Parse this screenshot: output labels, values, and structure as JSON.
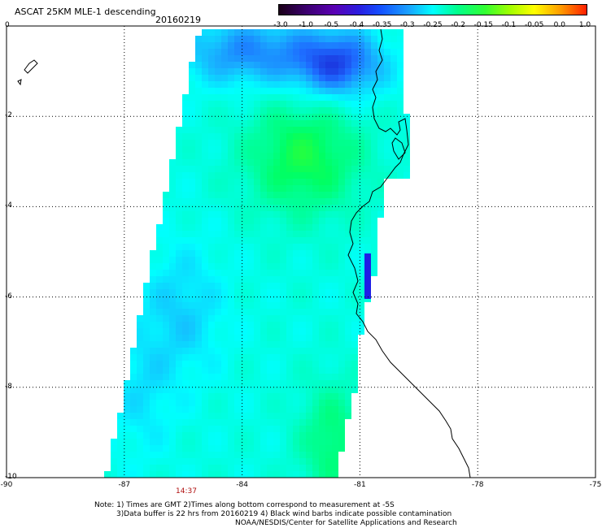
{
  "header": {
    "title": "ASCAT 25KM MLE-1 descending",
    "date": "20160219"
  },
  "colorbar": {
    "labels": [
      "-3.0",
      "-1.0",
      "-0.5",
      "-0.4",
      "-0.35",
      "-0.3",
      "-0.25",
      "-0.2",
      "-0.15",
      "-0.1",
      "-0.05",
      "0.0",
      "1.0"
    ],
    "colors": [
      "#1a0018",
      "#3c0070",
      "#5a00b4",
      "#2a1ee0",
      "#1450ff",
      "#1aa0ff",
      "#00ffff",
      "#00ff8c",
      "#32ff32",
      "#a0ff00",
      "#ffff00",
      "#ff9600",
      "#ff1e00"
    ]
  },
  "axes": {
    "lat_labels": [
      "0",
      "-2",
      "-4",
      "-6",
      "-8",
      "-10"
    ],
    "lon_labels": [
      "-90",
      "-87",
      "-84",
      "-81",
      "-78",
      "-75"
    ]
  },
  "pass_time": "14:37",
  "notes": [
    "Note: 1) Times are GMT 2)Times along bottom correspond to measurement at -5S",
    "3)Data buffer is 22 hrs from 20160219 4) Black wind barbs indicate possible contamination",
    "NOAA/NESDIS/Center for Satellite Applications and Research"
  ]
}
